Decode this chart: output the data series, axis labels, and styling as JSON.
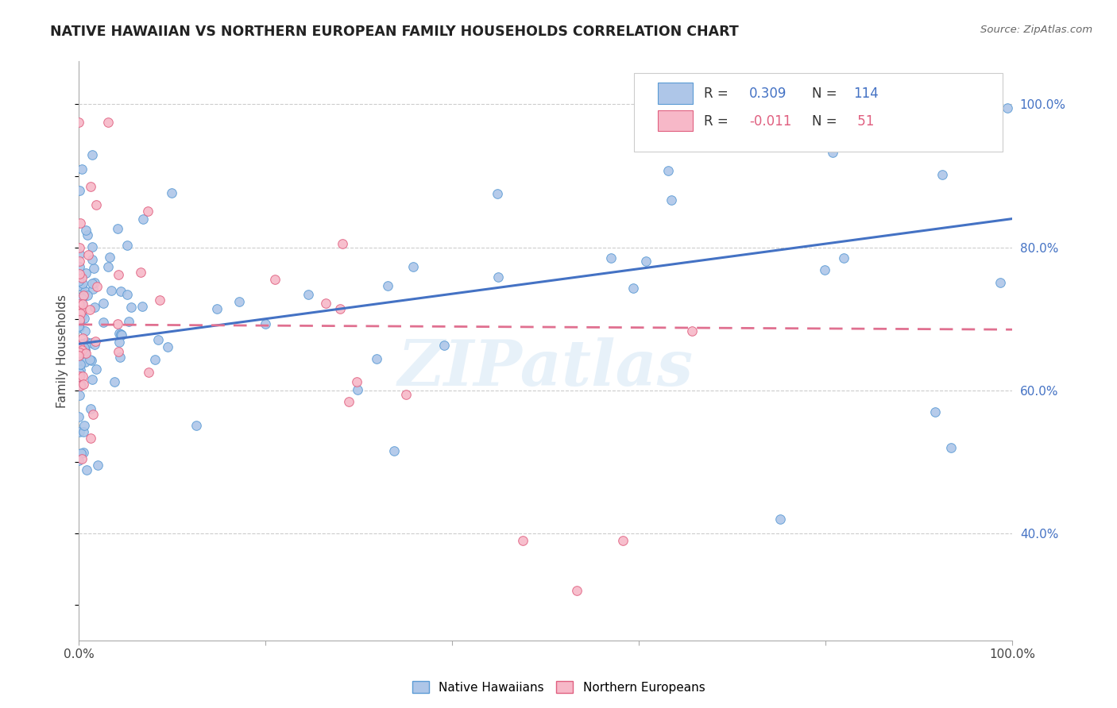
{
  "title": "NATIVE HAWAIIAN VS NORTHERN EUROPEAN FAMILY HOUSEHOLDS CORRELATION CHART",
  "source": "Source: ZipAtlas.com",
  "ylabel": "Family Households",
  "legend_label1": "Native Hawaiians",
  "legend_label2": "Northern Europeans",
  "r1": 0.309,
  "n1": 114,
  "r2": -0.011,
  "n2": 51,
  "color_blue_fill": "#aec6e8",
  "color_blue_edge": "#5b9bd5",
  "color_pink_fill": "#f7b8c8",
  "color_pink_edge": "#e06080",
  "line_blue": "#4472c4",
  "line_pink": "#e07090",
  "watermark": "ZIPatlas",
  "xlim": [
    0.0,
    1.0
  ],
  "ylim_low": 0.25,
  "ylim_high": 1.06,
  "yticks": [
    0.4,
    0.6,
    0.8,
    1.0
  ],
  "ytick_labels": [
    "40.0%",
    "60.0%",
    "80.0%",
    "100.0%"
  ],
  "xtick_positions": [
    0.0,
    0.2,
    0.4,
    0.6,
    0.8,
    1.0
  ],
  "xtick_labels": [
    "0.0%",
    "",
    "",
    "",
    "",
    "100.0%"
  ],
  "blue_line_y0": 0.665,
  "blue_line_y1": 0.84,
  "pink_line_y0": 0.692,
  "pink_line_y1": 0.685
}
